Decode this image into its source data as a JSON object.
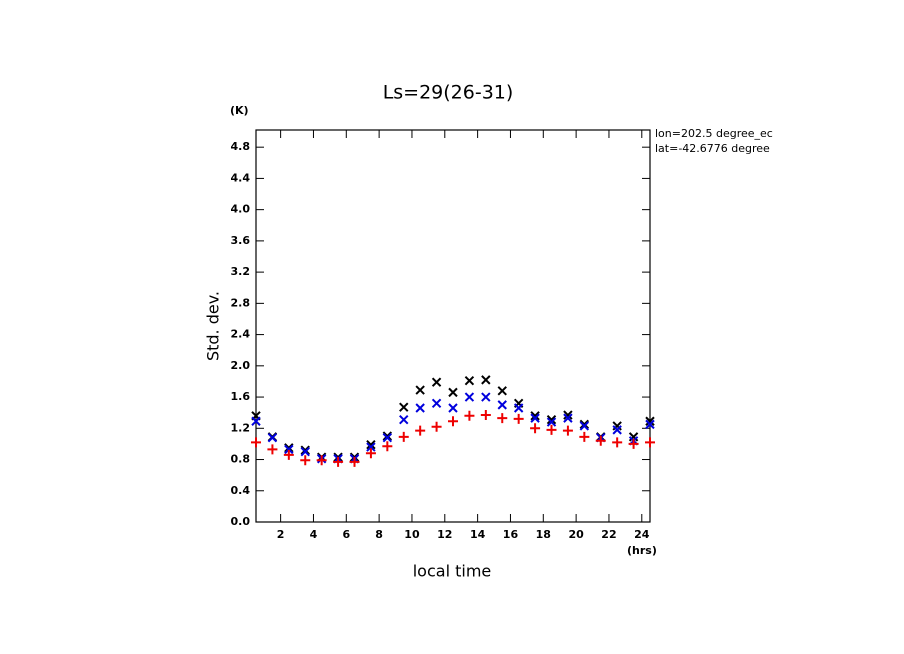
{
  "chart_data": {
    "type": "scatter",
    "title": "Ls=29(26-31)",
    "y_label": "Std. dev.",
    "y_unit": "(K)",
    "x_label": "local time",
    "x_unit": "(hrs)",
    "annotations": [
      "lon=202.5 degree_ec",
      "lat=-42.6776 degree"
    ],
    "x": [
      0.5,
      1.5,
      2.5,
      3.5,
      4.5,
      5.5,
      6.5,
      7.5,
      8.5,
      9.5,
      10.5,
      11.5,
      12.5,
      13.5,
      14.5,
      15.5,
      16.5,
      17.5,
      18.5,
      19.5,
      20.5,
      21.5,
      22.5,
      23.5,
      24.5
    ],
    "series": [
      {
        "color": "#000000",
        "marker": "x",
        "values": [
          1.36,
          1.09,
          0.95,
          0.92,
          0.83,
          0.83,
          0.83,
          0.99,
          1.1,
          1.47,
          1.69,
          1.79,
          1.66,
          1.81,
          1.82,
          1.68,
          1.52,
          1.36,
          1.31,
          1.37,
          1.25,
          1.09,
          1.23,
          1.09,
          1.29
        ]
      },
      {
        "color": "#0000dd",
        "marker": "x",
        "values": [
          1.29,
          1.08,
          0.93,
          0.9,
          0.81,
          0.81,
          0.81,
          0.96,
          1.08,
          1.31,
          1.46,
          1.52,
          1.46,
          1.6,
          1.6,
          1.5,
          1.46,
          1.33,
          1.28,
          1.33,
          1.23,
          1.08,
          1.18,
          1.04,
          1.25
        ]
      },
      {
        "color": "#ee0000",
        "marker": "+",
        "values": [
          1.02,
          0.93,
          0.86,
          0.79,
          0.79,
          0.77,
          0.77,
          0.88,
          0.97,
          1.09,
          1.17,
          1.22,
          1.29,
          1.36,
          1.37,
          1.33,
          1.32,
          1.2,
          1.18,
          1.17,
          1.09,
          1.04,
          1.02,
          1.0,
          1.02
        ]
      }
    ],
    "xlim": [
      0.5,
      24.5
    ],
    "xticks": [
      2,
      4,
      6,
      8,
      10,
      12,
      14,
      16,
      18,
      20,
      22,
      24
    ],
    "ylim": [
      0,
      5.02
    ],
    "yticks": [
      {
        "value": 0,
        "label": "0.0"
      },
      0.4,
      0.8,
      1.2,
      1.6,
      {
        "value": 2,
        "label": "2.0"
      },
      2.4,
      2.8,
      3.2,
      3.6,
      {
        "value": 4,
        "label": "4.0"
      },
      4.4,
      4.8
    ]
  }
}
